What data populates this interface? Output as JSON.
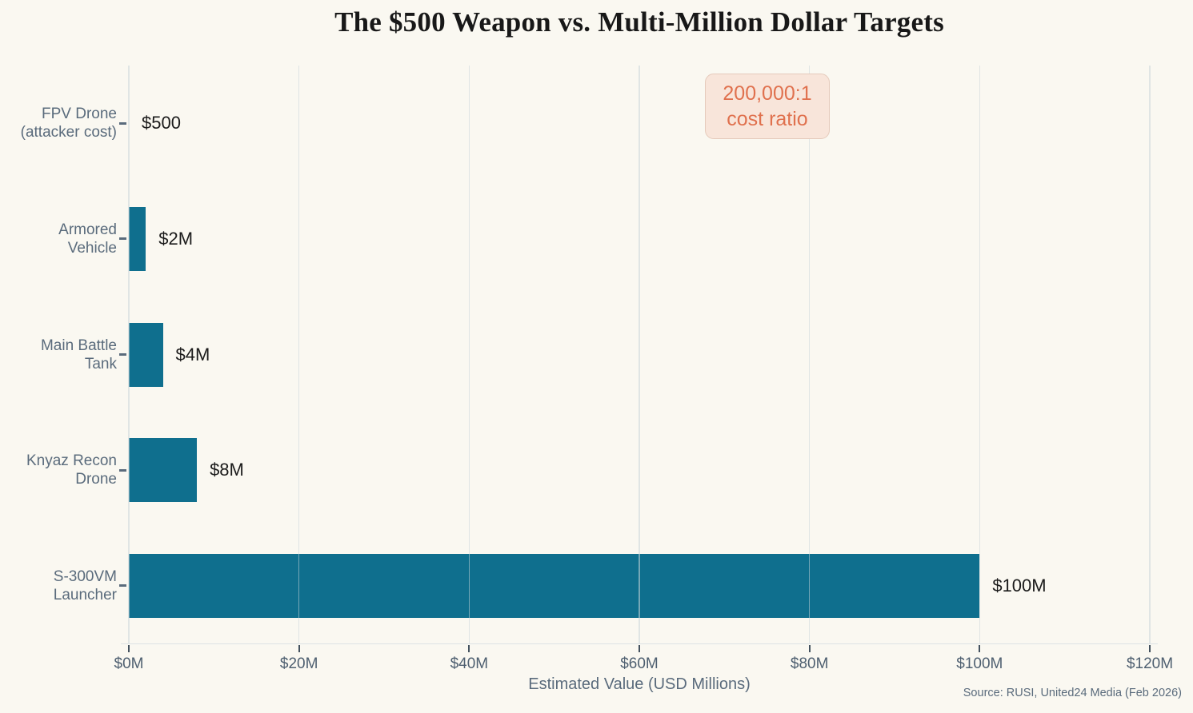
{
  "source": "Source: RUSI, United24 Media (Feb 2026)",
  "chart_data": {
    "type": "bar",
    "orientation": "horizontal",
    "title": "The $500 Weapon vs. Multi-Million Dollar Targets",
    "categories": [
      [
        "FPV Drone",
        "(attacker cost)"
      ],
      [
        "Armored",
        "Vehicle"
      ],
      [
        "Main Battle",
        "Tank"
      ],
      [
        "Knyaz Recon",
        "Drone"
      ],
      [
        "S-300VM",
        "Launcher"
      ]
    ],
    "values": [
      0.0005,
      2,
      4,
      8,
      100
    ],
    "value_labels": [
      "$500",
      "$2M",
      "$4M",
      "$8M",
      "$100M"
    ],
    "xlabel": "Estimated Value (USD Millions)",
    "xlim": [
      0,
      120
    ],
    "xticks": [
      0,
      20,
      40,
      60,
      80,
      100,
      120
    ],
    "xtick_labels": [
      "$0M",
      "$20M",
      "$40M",
      "$60M",
      "$80M",
      "$100M",
      "$120M"
    ],
    "grid": true,
    "legend": "none",
    "annotation_lines": [
      "200,000:1",
      "cost ratio"
    ],
    "colors": {
      "bar": "#0f6f8e",
      "background": "#faf8f1",
      "annotation_text": "#e0714e",
      "annotation_bg": "#f8e5da",
      "label_text": "#5a6b7c"
    }
  }
}
